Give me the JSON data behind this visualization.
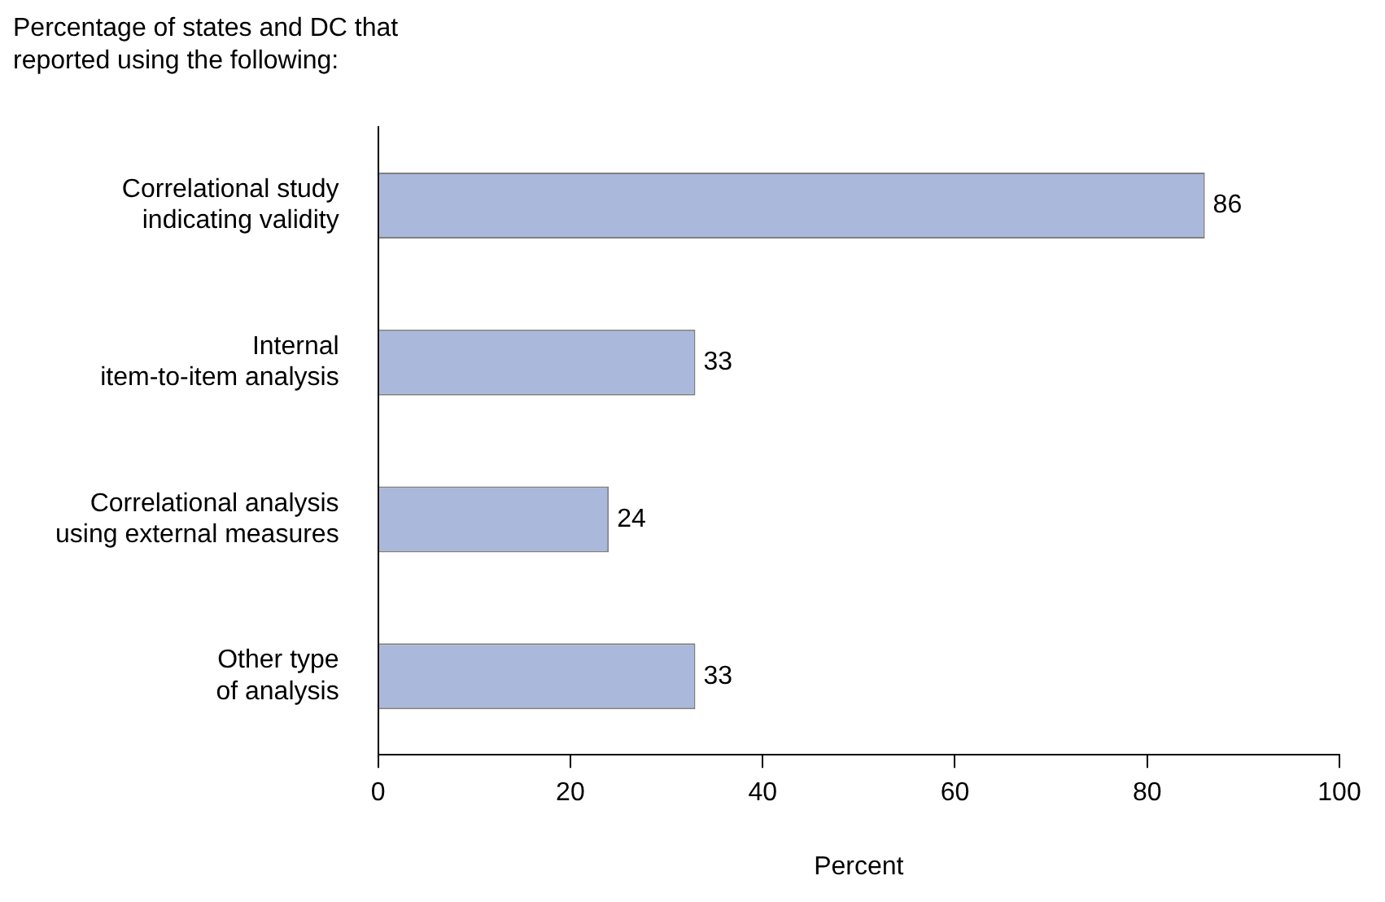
{
  "chart_data": {
    "type": "bar",
    "orientation": "horizontal",
    "title": "Percentage of states and DC that reported using the following:",
    "xlabel": "Percent",
    "categories": [
      "Correlational study indicating validity",
      "Internal item-to-item analysis",
      "Correlational analysis using external measures",
      "Other type of analysis"
    ],
    "values": [
      86,
      33,
      24,
      33
    ],
    "color": "#a9b8db",
    "xlim": [
      0,
      100
    ],
    "xticks": [
      0,
      20,
      40,
      60,
      80,
      100
    ],
    "grid": false,
    "legend": false,
    "data_labels": true
  }
}
